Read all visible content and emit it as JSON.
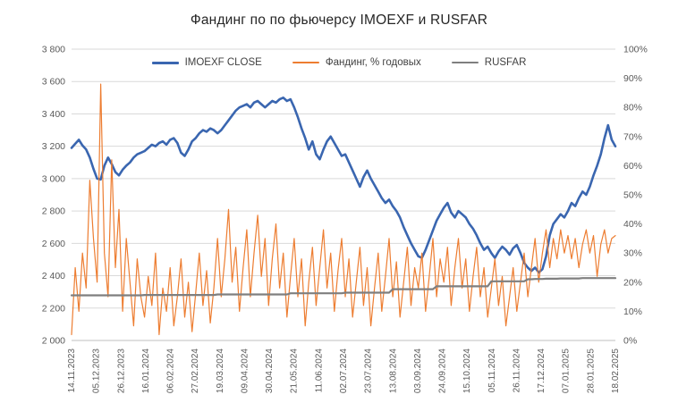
{
  "colors": {
    "grid": "#d9d9d9",
    "axis_line": "#bfbfbf",
    "tick_text": "#595959",
    "title_text": "#262626",
    "background": "#ffffff"
  },
  "chart_data": {
    "type": "line",
    "title": "Фандинг по по фьючерсу IMOEXF и RUSFAR",
    "legend_position": "top",
    "grid": true,
    "x_tick_labels": [
      "14.11.2023",
      "05.12.2023",
      "26.12.2023",
      "16.01.2024",
      "06.02.2024",
      "27.02.2024",
      "19.03.2024",
      "09.04.2024",
      "30.04.2024",
      "21.05.2024",
      "11.06.2024",
      "02.07.2024",
      "23.07.2024",
      "13.08.2024",
      "03.09.2024",
      "24.09.2024",
      "15.10.2024",
      "05.11.2024",
      "26.11.2024",
      "17.12.2024",
      "07.01.2025",
      "28.01.2025",
      "18.02.2025"
    ],
    "left_axis": {
      "min": 2000,
      "max": 3800,
      "step": 200,
      "tick_labels_top_to_bottom": [
        "3 800",
        "3 600",
        "3 400",
        "3 200",
        "3 000",
        "2 800",
        "2 600",
        "2 400",
        "2 200",
        "2 000"
      ]
    },
    "right_axis": {
      "min": 0,
      "max": 100,
      "step": 10,
      "tick_labels_top_to_bottom": [
        "100%",
        "90%",
        "80%",
        "70%",
        "60%",
        "50%",
        "40%",
        "30%",
        "20%",
        "10%",
        "0%"
      ]
    },
    "series": [
      {
        "id": "imoexf-close",
        "name": "IMOEXF CLOSE",
        "axis": "left",
        "color": "#3a66b0",
        "stroke_width": 2.6,
        "values": [
          3190,
          3215,
          3240,
          3205,
          3180,
          3130,
          3060,
          3000,
          2995,
          3080,
          3130,
          3090,
          3040,
          3020,
          3055,
          3080,
          3100,
          3130,
          3150,
          3160,
          3170,
          3190,
          3210,
          3200,
          3220,
          3230,
          3210,
          3240,
          3250,
          3220,
          3160,
          3140,
          3180,
          3230,
          3250,
          3280,
          3300,
          3290,
          3310,
          3300,
          3280,
          3300,
          3330,
          3360,
          3390,
          3420,
          3440,
          3450,
          3460,
          3440,
          3470,
          3480,
          3460,
          3440,
          3460,
          3480,
          3470,
          3490,
          3500,
          3480,
          3490,
          3440,
          3380,
          3310,
          3250,
          3180,
          3230,
          3150,
          3120,
          3180,
          3230,
          3260,
          3220,
          3180,
          3140,
          3150,
          3100,
          3050,
          3000,
          2950,
          3010,
          3050,
          3000,
          2960,
          2920,
          2880,
          2850,
          2870,
          2830,
          2800,
          2760,
          2700,
          2650,
          2600,
          2560,
          2520,
          2510,
          2560,
          2620,
          2680,
          2740,
          2780,
          2820,
          2850,
          2790,
          2760,
          2800,
          2780,
          2760,
          2720,
          2690,
          2650,
          2600,
          2560,
          2580,
          2540,
          2510,
          2550,
          2580,
          2560,
          2530,
          2570,
          2590,
          2540,
          2480,
          2450,
          2430,
          2450,
          2420,
          2440,
          2520,
          2650,
          2720,
          2750,
          2780,
          2760,
          2800,
          2850,
          2830,
          2880,
          2920,
          2900,
          2950,
          3020,
          3080,
          3150,
          3250,
          3330,
          3240,
          3200
        ]
      },
      {
        "id": "funding",
        "name": "Фандинг, % годовых",
        "axis": "right",
        "color": "#ed7d31",
        "stroke_width": 1.2,
        "values": [
          2,
          25,
          10,
          30,
          18,
          55,
          35,
          20,
          88,
          30,
          15,
          62,
          25,
          45,
          10,
          35,
          20,
          5,
          28,
          15,
          8,
          22,
          12,
          30,
          2,
          18,
          10,
          25,
          5,
          15,
          28,
          8,
          20,
          3,
          16,
          30,
          12,
          24,
          6,
          18,
          35,
          15,
          28,
          45,
          20,
          32,
          10,
          25,
          38,
          15,
          30,
          43,
          22,
          35,
          12,
          28,
          40,
          18,
          30,
          8,
          22,
          35,
          15,
          28,
          5,
          20,
          32,
          12,
          25,
          38,
          18,
          30,
          10,
          24,
          35,
          15,
          28,
          8,
          20,
          32,
          12,
          25,
          5,
          18,
          30,
          10,
          22,
          35,
          15,
          27,
          8,
          20,
          32,
          12,
          25,
          18,
          30,
          10,
          22,
          35,
          15,
          28,
          20,
          32,
          12,
          25,
          35,
          18,
          28,
          10,
          22,
          32,
          15,
          25,
          8,
          18,
          28,
          12,
          22,
          5,
          15,
          25,
          10,
          20,
          30,
          15,
          25,
          35,
          20,
          30,
          38,
          25,
          35,
          28,
          38,
          30,
          36,
          28,
          35,
          25,
          33,
          38,
          30,
          36,
          22,
          33,
          38,
          30,
          35,
          36
        ]
      },
      {
        "id": "rusfar",
        "name": "RUSFAR",
        "axis": "right",
        "color": "#7f7f7f",
        "stroke_width": 2.2,
        "values": [
          15.5,
          15.5,
          15.5,
          15.5,
          15.5,
          15.5,
          15.5,
          15.5,
          15.5,
          15.5,
          15.5,
          15.5,
          15.5,
          15.5,
          15.5,
          15.5,
          15.5,
          15.5,
          15.5,
          15.5,
          15.6,
          15.6,
          15.6,
          15.6,
          15.6,
          15.6,
          15.6,
          15.6,
          15.6,
          15.6,
          15.6,
          15.6,
          15.6,
          15.6,
          15.6,
          15.6,
          15.6,
          15.6,
          15.6,
          15.6,
          15.8,
          15.8,
          15.8,
          15.8,
          15.8,
          15.8,
          15.8,
          15.8,
          15.8,
          15.8,
          15.8,
          15.8,
          15.8,
          15.8,
          15.8,
          15.8,
          15.8,
          15.8,
          15.8,
          15.8,
          16.2,
          16.2,
          16.2,
          16.2,
          16.2,
          16.2,
          16.2,
          16.2,
          16.2,
          16.2,
          16.2,
          16.2,
          16.2,
          16.2,
          16.2,
          16.4,
          16.4,
          16.4,
          16.4,
          16.4,
          16.4,
          16.4,
          16.4,
          16.4,
          16.4,
          16.4,
          16.4,
          16.4,
          17.6,
          17.6,
          17.6,
          17.6,
          17.6,
          17.6,
          17.6,
          17.6,
          17.6,
          17.6,
          17.6,
          17.6,
          18.6,
          18.6,
          18.6,
          18.6,
          18.6,
          18.6,
          18.6,
          18.6,
          18.6,
          18.6,
          18.6,
          18.6,
          18.6,
          18.6,
          18.6,
          20.3,
          20.3,
          20.3,
          20.3,
          20.3,
          20.3,
          20.3,
          20.3,
          20.3,
          20.3,
          21,
          21,
          21.1,
          21.1,
          21.1,
          21.2,
          21.2,
          21.2,
          21.2,
          21.3,
          21.3,
          21.3,
          21.3,
          21.3,
          21.3,
          21.4,
          21.4,
          21.4,
          21.4,
          21.4,
          21.4,
          21.4,
          21.4,
          21.4,
          21.4
        ]
      }
    ]
  }
}
